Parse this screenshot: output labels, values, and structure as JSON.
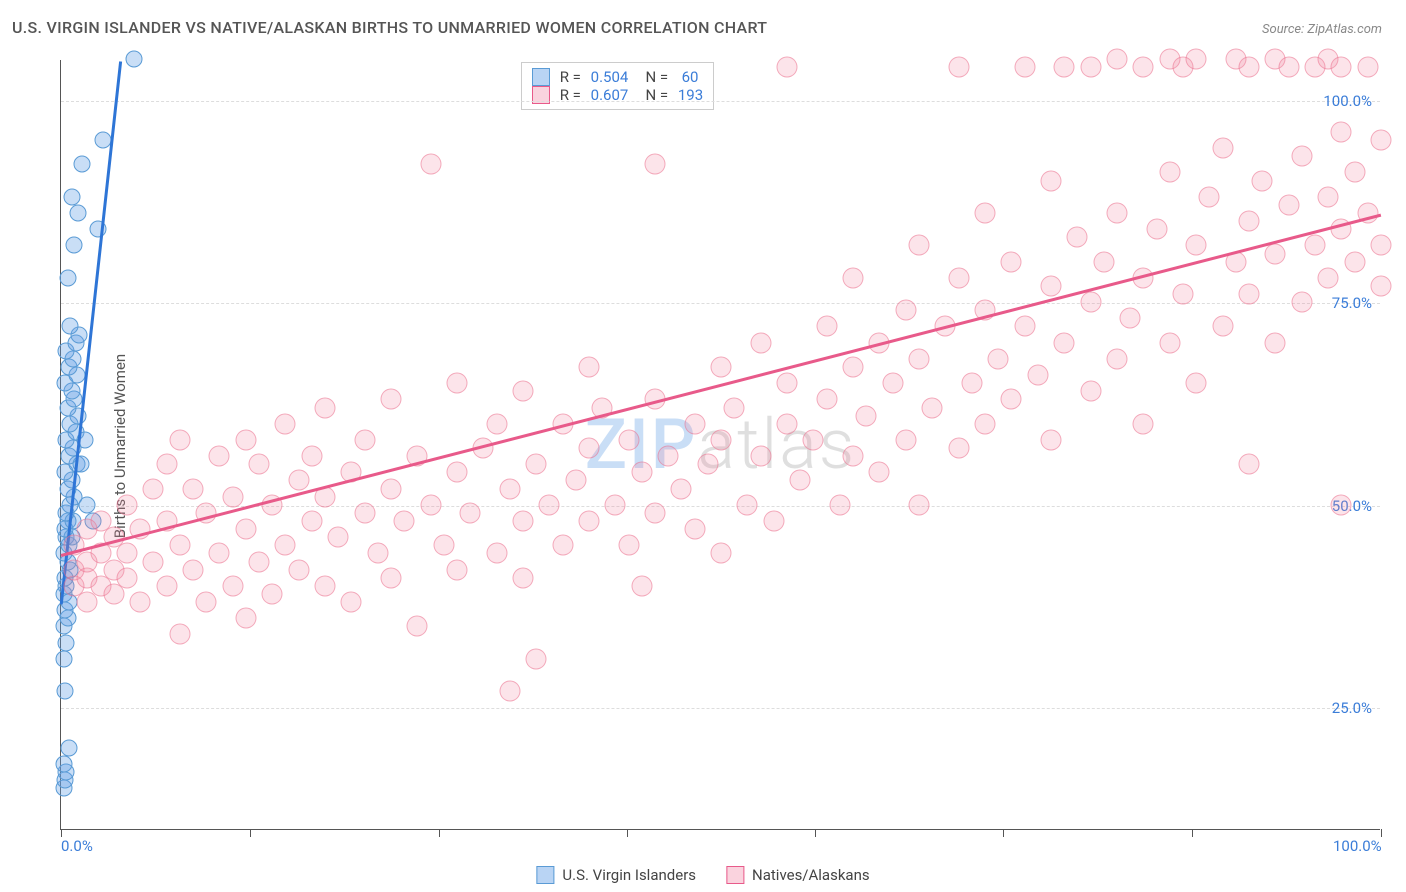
{
  "title": "U.S. VIRGIN ISLANDER VS NATIVE/ALASKAN BIRTHS TO UNMARRIED WOMEN CORRELATION CHART",
  "source": "Source: ZipAtlas.com",
  "y_axis_label": "Births to Unmarried Women",
  "watermark": {
    "part1": "ZIP",
    "part2": "atlas"
  },
  "chart": {
    "type": "scatter",
    "background_color": "#ffffff",
    "grid_color": "#dddddd",
    "axis_color": "#555555",
    "text_color": "#555555",
    "tick_label_color": "#3b7dd8",
    "xlim": [
      0,
      100
    ],
    "ylim": [
      10,
      105
    ],
    "y_ticks": [
      25,
      50,
      75,
      100
    ],
    "y_tick_labels": [
      "25.0%",
      "50.0%",
      "75.0%",
      "100.0%"
    ],
    "x_ticks": [
      0,
      14.3,
      28.6,
      42.9,
      57.1,
      71.4,
      85.7,
      100
    ],
    "x_tick_labels": {
      "0": "0.0%",
      "100": "100.0%"
    },
    "marker_radius_blue": 8.5,
    "marker_radius_pink": 10.5,
    "marker_opacity": 0.3,
    "trend_line_width": 2.5
  },
  "series": [
    {
      "name": "U.S. Virgin Islanders",
      "color": "#5a9bd5",
      "fill": "rgba(100,160,230,0.35)",
      "R": "0.504",
      "N": "60",
      "trend": {
        "x1": 0,
        "y1": 38,
        "x2": 4.5,
        "y2": 105
      },
      "points": [
        [
          0.2,
          15
        ],
        [
          0.3,
          16
        ],
        [
          0.4,
          17
        ],
        [
          0.2,
          18
        ],
        [
          0.6,
          20
        ],
        [
          0.3,
          27
        ],
        [
          0.2,
          31
        ],
        [
          0.4,
          33
        ],
        [
          0.2,
          35
        ],
        [
          0.5,
          36
        ],
        [
          0.3,
          37
        ],
        [
          0.6,
          38
        ],
        [
          0.2,
          39
        ],
        [
          0.4,
          40
        ],
        [
          0.3,
          41
        ],
        [
          0.7,
          42
        ],
        [
          0.5,
          43
        ],
        [
          0.2,
          44
        ],
        [
          0.6,
          45
        ],
        [
          0.4,
          46
        ],
        [
          0.8,
          46
        ],
        [
          0.3,
          47
        ],
        [
          0.5,
          48
        ],
        [
          0.9,
          48
        ],
        [
          0.4,
          49
        ],
        [
          0.7,
          50
        ],
        [
          1.0,
          51
        ],
        [
          0.5,
          52
        ],
        [
          0.8,
          53
        ],
        [
          0.3,
          54
        ],
        [
          1.2,
          55
        ],
        [
          0.6,
          56
        ],
        [
          0.9,
          57
        ],
        [
          0.4,
          58
        ],
        [
          1.1,
          59
        ],
        [
          0.7,
          60
        ],
        [
          1.3,
          61
        ],
        [
          0.5,
          62
        ],
        [
          1.0,
          63
        ],
        [
          0.8,
          64
        ],
        [
          0.3,
          65
        ],
        [
          1.2,
          66
        ],
        [
          0.6,
          67
        ],
        [
          0.9,
          68
        ],
        [
          0.4,
          69
        ],
        [
          1.1,
          70
        ],
        [
          1.4,
          71
        ],
        [
          0.7,
          72
        ],
        [
          1.5,
          55
        ],
        [
          1.8,
          58
        ],
        [
          2.0,
          50
        ],
        [
          2.4,
          48
        ],
        [
          0.5,
          78
        ],
        [
          1.0,
          82
        ],
        [
          2.8,
          84
        ],
        [
          1.3,
          86
        ],
        [
          0.8,
          88
        ],
        [
          5.5,
          105
        ],
        [
          3.2,
          95
        ],
        [
          1.6,
          92
        ]
      ]
    },
    {
      "name": "Natives/Alaskans",
      "color": "#e85a8a",
      "fill": "rgba(240,130,160,0.22)",
      "R": "0.607",
      "N": "193",
      "trend": {
        "x1": 0,
        "y1": 44,
        "x2": 100,
        "y2": 86
      },
      "points": [
        [
          1,
          40
        ],
        [
          1,
          42
        ],
        [
          1,
          45
        ],
        [
          2,
          38
        ],
        [
          2,
          41
        ],
        [
          2,
          43
        ],
        [
          2,
          47
        ],
        [
          3,
          40
        ],
        [
          3,
          44
        ],
        [
          3,
          48
        ],
        [
          4,
          39
        ],
        [
          4,
          42
        ],
        [
          4,
          46
        ],
        [
          5,
          41
        ],
        [
          5,
          44
        ],
        [
          5,
          50
        ],
        [
          6,
          38
        ],
        [
          6,
          47
        ],
        [
          7,
          43
        ],
        [
          7,
          52
        ],
        [
          8,
          40
        ],
        [
          8,
          48
        ],
        [
          8,
          55
        ],
        [
          9,
          34
        ],
        [
          9,
          45
        ],
        [
          9,
          58
        ],
        [
          10,
          42
        ],
        [
          10,
          52
        ],
        [
          11,
          38
        ],
        [
          11,
          49
        ],
        [
          12,
          44
        ],
        [
          12,
          56
        ],
        [
          13,
          40
        ],
        [
          13,
          51
        ],
        [
          14,
          36
        ],
        [
          14,
          47
        ],
        [
          14,
          58
        ],
        [
          15,
          43
        ],
        [
          15,
          55
        ],
        [
          16,
          39
        ],
        [
          16,
          50
        ],
        [
          17,
          45
        ],
        [
          17,
          60
        ],
        [
          18,
          42
        ],
        [
          18,
          53
        ],
        [
          19,
          48
        ],
        [
          19,
          56
        ],
        [
          20,
          40
        ],
        [
          20,
          51
        ],
        [
          20,
          62
        ],
        [
          21,
          46
        ],
        [
          22,
          38
        ],
        [
          22,
          54
        ],
        [
          23,
          49
        ],
        [
          23,
          58
        ],
        [
          24,
          44
        ],
        [
          25,
          41
        ],
        [
          25,
          52
        ],
        [
          25,
          63
        ],
        [
          26,
          48
        ],
        [
          27,
          35
        ],
        [
          27,
          56
        ],
        [
          28,
          50
        ],
        [
          28,
          92
        ],
        [
          29,
          45
        ],
        [
          30,
          42
        ],
        [
          30,
          54
        ],
        [
          30,
          65
        ],
        [
          31,
          49
        ],
        [
          32,
          57
        ],
        [
          33,
          44
        ],
        [
          33,
          60
        ],
        [
          34,
          27
        ],
        [
          34,
          52
        ],
        [
          35,
          41
        ],
        [
          35,
          48
        ],
        [
          35,
          64
        ],
        [
          36,
          31
        ],
        [
          36,
          55
        ],
        [
          37,
          50
        ],
        [
          38,
          45
        ],
        [
          38,
          60
        ],
        [
          39,
          53
        ],
        [
          40,
          48
        ],
        [
          40,
          57
        ],
        [
          40,
          67
        ],
        [
          41,
          62
        ],
        [
          42,
          50
        ],
        [
          43,
          45
        ],
        [
          43,
          58
        ],
        [
          44,
          40
        ],
        [
          44,
          54
        ],
        [
          45,
          49
        ],
        [
          45,
          63
        ],
        [
          45,
          92
        ],
        [
          46,
          56
        ],
        [
          47,
          52
        ],
        [
          48,
          47
        ],
        [
          48,
          60
        ],
        [
          49,
          55
        ],
        [
          50,
          44
        ],
        [
          50,
          58
        ],
        [
          50,
          67
        ],
        [
          51,
          62
        ],
        [
          52,
          50
        ],
        [
          53,
          56
        ],
        [
          53,
          70
        ],
        [
          54,
          48
        ],
        [
          55,
          60
        ],
        [
          55,
          65
        ],
        [
          55,
          104
        ],
        [
          56,
          53
        ],
        [
          57,
          58
        ],
        [
          58,
          63
        ],
        [
          58,
          72
        ],
        [
          59,
          50
        ],
        [
          60,
          56
        ],
        [
          60,
          67
        ],
        [
          60,
          78
        ],
        [
          61,
          61
        ],
        [
          62,
          54
        ],
        [
          62,
          70
        ],
        [
          63,
          65
        ],
        [
          64,
          58
        ],
        [
          64,
          74
        ],
        [
          65,
          50
        ],
        [
          65,
          68
        ],
        [
          65,
          82
        ],
        [
          66,
          62
        ],
        [
          67,
          72
        ],
        [
          68,
          57
        ],
        [
          68,
          78
        ],
        [
          68,
          104
        ],
        [
          69,
          65
        ],
        [
          70,
          60
        ],
        [
          70,
          74
        ],
        [
          70,
          86
        ],
        [
          71,
          68
        ],
        [
          72,
          63
        ],
        [
          72,
          80
        ],
        [
          73,
          72
        ],
        [
          73,
          104
        ],
        [
          74,
          66
        ],
        [
          75,
          58
        ],
        [
          75,
          77
        ],
        [
          75,
          90
        ],
        [
          76,
          70
        ],
        [
          76,
          104
        ],
        [
          77,
          83
        ],
        [
          78,
          64
        ],
        [
          78,
          75
        ],
        [
          78,
          104
        ],
        [
          79,
          80
        ],
        [
          80,
          68
        ],
        [
          80,
          86
        ],
        [
          80,
          105
        ],
        [
          81,
          73
        ],
        [
          82,
          60
        ],
        [
          82,
          78
        ],
        [
          82,
          104
        ],
        [
          83,
          84
        ],
        [
          84,
          70
        ],
        [
          84,
          91
        ],
        [
          84,
          105
        ],
        [
          85,
          76
        ],
        [
          85,
          104
        ],
        [
          86,
          65
        ],
        [
          86,
          82
        ],
        [
          86,
          105
        ],
        [
          87,
          88
        ],
        [
          88,
          72
        ],
        [
          88,
          94
        ],
        [
          89,
          80
        ],
        [
          89,
          105
        ],
        [
          90,
          55
        ],
        [
          90,
          76
        ],
        [
          90,
          85
        ],
        [
          90,
          104
        ],
        [
          91,
          90
        ],
        [
          92,
          70
        ],
        [
          92,
          81
        ],
        [
          92,
          105
        ],
        [
          93,
          87
        ],
        [
          93,
          104
        ],
        [
          94,
          75
        ],
        [
          94,
          93
        ],
        [
          95,
          82
        ],
        [
          95,
          104
        ],
        [
          96,
          78
        ],
        [
          96,
          88
        ],
        [
          96,
          105
        ],
        [
          97,
          50
        ],
        [
          97,
          84
        ],
        [
          97,
          96
        ],
        [
          97,
          104
        ],
        [
          98,
          80
        ],
        [
          98,
          91
        ],
        [
          99,
          86
        ],
        [
          99,
          104
        ],
        [
          100,
          77
        ],
        [
          100,
          82
        ],
        [
          100,
          95
        ]
      ]
    }
  ],
  "legend_stats_title": {
    "R": "R = ",
    "N": "N = "
  },
  "bottom_legend": [
    {
      "label": "U.S. Virgin Islanders",
      "swatch": "blue"
    },
    {
      "label": "Natives/Alaskans",
      "swatch": "pink"
    }
  ]
}
